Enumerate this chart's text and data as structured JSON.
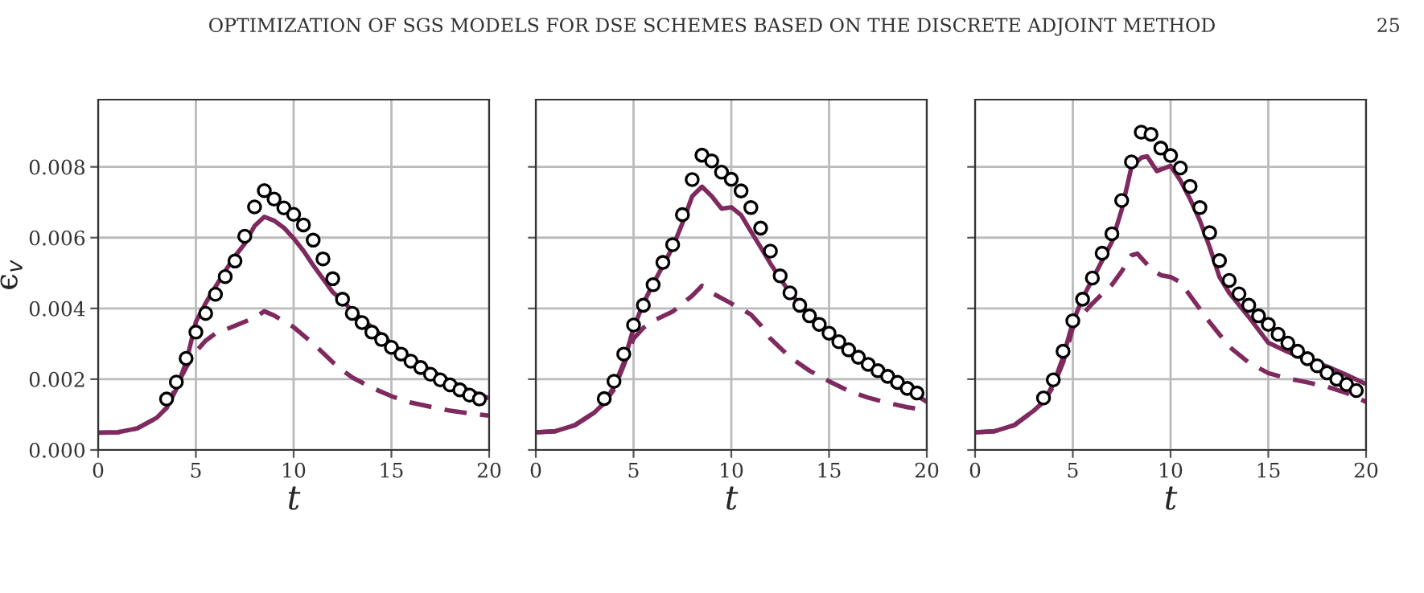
{
  "chart_data": [
    {
      "type": "line",
      "ylabel": "ϵ$_{v}$",
      "xlabel": "t",
      "annotations": [
        "OPTIMIZATION OF SGS MODELS FOR DSE SCHEMES BASED ON THE DISCRETE ADJOINT METHOD",
        "25"
      ],
      "xlim": [
        0,
        20
      ],
      "xticks": [
        0,
        5,
        10,
        15,
        20
      ],
      "ylim": [
        0,
        0.0099
      ],
      "yticks": [
        {
          "value": 0,
          "label": "0.000"
        },
        0.002,
        0.004,
        0.006,
        0.008
      ],
      "grid": true,
      "series": [
        {
          "type": "line",
          "line_style": "solid",
          "color": "#7f2a5f",
          "x": [
            0,
            1,
            2,
            3,
            3.5,
            4,
            4.5,
            5,
            5.5,
            6,
            6.5,
            7,
            7.5,
            8,
            8.5,
            9,
            9.5,
            10,
            10.5,
            11,
            11.5,
            12,
            12.5,
            13,
            14,
            15,
            16,
            17,
            18,
            19,
            20
          ],
          "values": [
            0.00049,
            0.0005,
            0.00061,
            0.00091,
            0.00119,
            0.00172,
            0.00248,
            0.00362,
            0.00415,
            0.00461,
            0.00506,
            0.00548,
            0.00583,
            0.00633,
            0.00659,
            0.00648,
            0.00628,
            0.00598,
            0.00563,
            0.00522,
            0.00484,
            0.00446,
            0.00423,
            0.00392,
            0.00347,
            0.00301,
            0.00259,
            0.00225,
            0.00195,
            0.00167,
            0.00146
          ]
        },
        {
          "type": "line",
          "line_style": "dashed",
          "color": "#7f2a5f",
          "x": [
            0,
            1,
            2,
            3,
            3.5,
            4,
            4.5,
            5,
            5.5,
            6,
            7,
            8,
            8.5,
            9,
            10,
            11,
            12,
            12.5,
            13,
            14,
            15,
            16,
            17,
            18,
            19,
            20
          ],
          "values": [
            0.00049,
            0.0005,
            0.00061,
            0.00091,
            0.00119,
            0.0018,
            0.00233,
            0.00278,
            0.00309,
            0.00329,
            0.00351,
            0.00374,
            0.00392,
            0.0038,
            0.00347,
            0.00301,
            0.00248,
            0.00225,
            0.00205,
            0.00176,
            0.00152,
            0.00134,
            0.00122,
            0.00111,
            0.00103,
            0.00097
          ]
        },
        {
          "type": "scatter",
          "marker": "circle",
          "color": "#000000",
          "x": [
            3.5,
            4,
            4.5,
            5,
            5.5,
            6,
            6.5,
            7,
            7.5,
            8,
            8.5,
            9,
            9.5,
            10,
            10.5,
            11,
            11.5,
            12,
            12.5,
            13,
            13.5,
            14,
            14.5,
            15,
            15.5,
            16,
            16.5,
            17,
            17.5,
            18,
            18.5,
            19,
            19.5
          ],
          "values": [
            0.00144,
            0.00192,
            0.00259,
            0.00333,
            0.00386,
            0.0044,
            0.0049,
            0.00534,
            0.00604,
            0.00687,
            0.00733,
            0.00709,
            0.00684,
            0.00666,
            0.00636,
            0.00593,
            0.0054,
            0.00484,
            0.00426,
            0.00386,
            0.0036,
            0.00333,
            0.00312,
            0.0029,
            0.00271,
            0.00251,
            0.00233,
            0.00214,
            0.00198,
            0.00184,
            0.0017,
            0.00155,
            0.00144
          ]
        }
      ]
    },
    {
      "type": "line",
      "xlabel": "t",
      "xlim": [
        0,
        20
      ],
      "xticks": [
        0,
        5,
        10,
        15,
        20
      ],
      "ylim": [
        0,
        0.0099
      ],
      "yticks": [
        0,
        0.002,
        0.004,
        0.006,
        0.008
      ],
      "grid": true,
      "tick_labels": "x",
      "series": [
        {
          "type": "line",
          "line_style": "solid",
          "color": "#7f2a5f",
          "x": [
            0,
            1,
            2,
            3,
            3.5,
            4,
            4.5,
            5,
            5.5,
            6,
            6.5,
            7,
            7.5,
            8,
            8.5,
            9,
            9.5,
            10,
            10.5,
            11,
            11.5,
            12,
            12.5,
            13,
            14,
            15,
            16,
            17,
            18,
            19,
            20
          ],
          "values": [
            0.0005,
            0.00053,
            0.0007,
            0.00106,
            0.00133,
            0.00179,
            0.00247,
            0.00345,
            0.00414,
            0.0047,
            0.0052,
            0.00573,
            0.00641,
            0.00717,
            0.00744,
            0.00717,
            0.00682,
            0.00686,
            0.00664,
            0.00618,
            0.00573,
            0.00527,
            0.00485,
            0.00444,
            0.00383,
            0.00333,
            0.00288,
            0.00247,
            0.00209,
            0.00171,
            0.00136
          ]
        },
        {
          "type": "line",
          "line_style": "dashed",
          "color": "#7f2a5f",
          "x": [
            0,
            1,
            2,
            3,
            3.5,
            4,
            4.5,
            5,
            5.5,
            6,
            7,
            8,
            8.5,
            9,
            10,
            11,
            11.5,
            12,
            13,
            14,
            15,
            16,
            17,
            18,
            19,
            20
          ],
          "values": [
            0.0005,
            0.00053,
            0.0007,
            0.00106,
            0.00133,
            0.00171,
            0.00239,
            0.00315,
            0.00345,
            0.00365,
            0.00391,
            0.00436,
            0.00464,
            0.00444,
            0.00414,
            0.00383,
            0.00353,
            0.00315,
            0.00262,
            0.00224,
            0.00194,
            0.00167,
            0.00148,
            0.00133,
            0.00121,
            0.00112
          ]
        },
        {
          "type": "scatter",
          "marker": "circle",
          "color": "#000000",
          "x": [
            3.5,
            4,
            4.5,
            5,
            5.5,
            6,
            6.5,
            7,
            7.5,
            8,
            8.5,
            9,
            9.5,
            10,
            10.5,
            11,
            11.5,
            12,
            12.5,
            13,
            13.5,
            14,
            14.5,
            15,
            15.5,
            16,
            16.5,
            17,
            17.5,
            18,
            18.5,
            19,
            19.5
          ],
          "values": [
            0.00145,
            0.00194,
            0.00271,
            0.00353,
            0.00409,
            0.00467,
            0.0053,
            0.0058,
            0.00665,
            0.00764,
            0.00833,
            0.00817,
            0.00785,
            0.00765,
            0.00732,
            0.00685,
            0.00627,
            0.00562,
            0.00492,
            0.00444,
            0.00409,
            0.00379,
            0.00355,
            0.0033,
            0.00306,
            0.00283,
            0.00262,
            0.00242,
            0.00224,
            0.00208,
            0.00191,
            0.00174,
            0.00161
          ]
        }
      ]
    },
    {
      "type": "line",
      "xlabel": "t",
      "xlim": [
        0,
        20
      ],
      "xticks": [
        0,
        5,
        10,
        15,
        20
      ],
      "ylim": [
        0,
        0.0099
      ],
      "yticks": [
        0,
        0.002,
        0.004,
        0.006,
        0.008
      ],
      "grid": true,
      "tick_labels": "x",
      "series": [
        {
          "type": "line",
          "line_style": "solid",
          "color": "#7f2a5f",
          "x": [
            0,
            1,
            2,
            3,
            3.5,
            4,
            4.5,
            5,
            5.5,
            6,
            6.5,
            7,
            7.5,
            8,
            8.5,
            8.8,
            9.3,
            10,
            10.5,
            11,
            11.5,
            12,
            12.5,
            13,
            14,
            15,
            16,
            17,
            18,
            19,
            20
          ],
          "values": [
            0.0005,
            0.00053,
            0.0007,
            0.00111,
            0.00136,
            0.00186,
            0.00262,
            0.00361,
            0.00429,
            0.00482,
            0.00535,
            0.00588,
            0.00679,
            0.008,
            0.00826,
            0.0083,
            0.00788,
            0.00803,
            0.00762,
            0.00709,
            0.00648,
            0.00573,
            0.00489,
            0.00444,
            0.00376,
            0.00303,
            0.00277,
            0.00255,
            0.00236,
            0.00212,
            0.00186
          ]
        },
        {
          "type": "line",
          "line_style": "dashed",
          "color": "#7f2a5f",
          "x": [
            0,
            1,
            2,
            3,
            3.5,
            4,
            4.5,
            5,
            5.5,
            6,
            7,
            7.5,
            8,
            8.3,
            9,
            9.5,
            10,
            10.5,
            11,
            12,
            13,
            14,
            15,
            16,
            17,
            18,
            19,
            20
          ],
          "values": [
            0.0005,
            0.00053,
            0.0007,
            0.00111,
            0.00136,
            0.00179,
            0.00247,
            0.00345,
            0.00383,
            0.00414,
            0.00467,
            0.00505,
            0.0055,
            0.00555,
            0.00512,
            0.00494,
            0.00489,
            0.00474,
            0.00436,
            0.00361,
            0.00292,
            0.00247,
            0.00217,
            0.00202,
            0.00191,
            0.00179,
            0.00161,
            0.00136
          ]
        },
        {
          "type": "scatter",
          "marker": "circle",
          "color": "#000000",
          "x": [
            3.5,
            4,
            4.5,
            5,
            5.5,
            6,
            6.5,
            7,
            7.5,
            8,
            8.5,
            9,
            9.5,
            10,
            10.5,
            11,
            11.5,
            12,
            12.5,
            13,
            13.5,
            14,
            14.5,
            15,
            15.5,
            16,
            16.5,
            17,
            17.5,
            18,
            18.5,
            19,
            19.5
          ],
          "values": [
            0.00147,
            0.00198,
            0.00279,
            0.00365,
            0.00426,
            0.00486,
            0.00556,
            0.00611,
            0.00705,
            0.00814,
            0.00898,
            0.00892,
            0.00853,
            0.00832,
            0.00797,
            0.00745,
            0.00685,
            0.00614,
            0.00535,
            0.00479,
            0.00441,
            0.00409,
            0.00379,
            0.00355,
            0.00327,
            0.00302,
            0.00279,
            0.00258,
            0.00238,
            0.00218,
            0.002,
            0.00185,
            0.00168
          ]
        }
      ]
    }
  ]
}
